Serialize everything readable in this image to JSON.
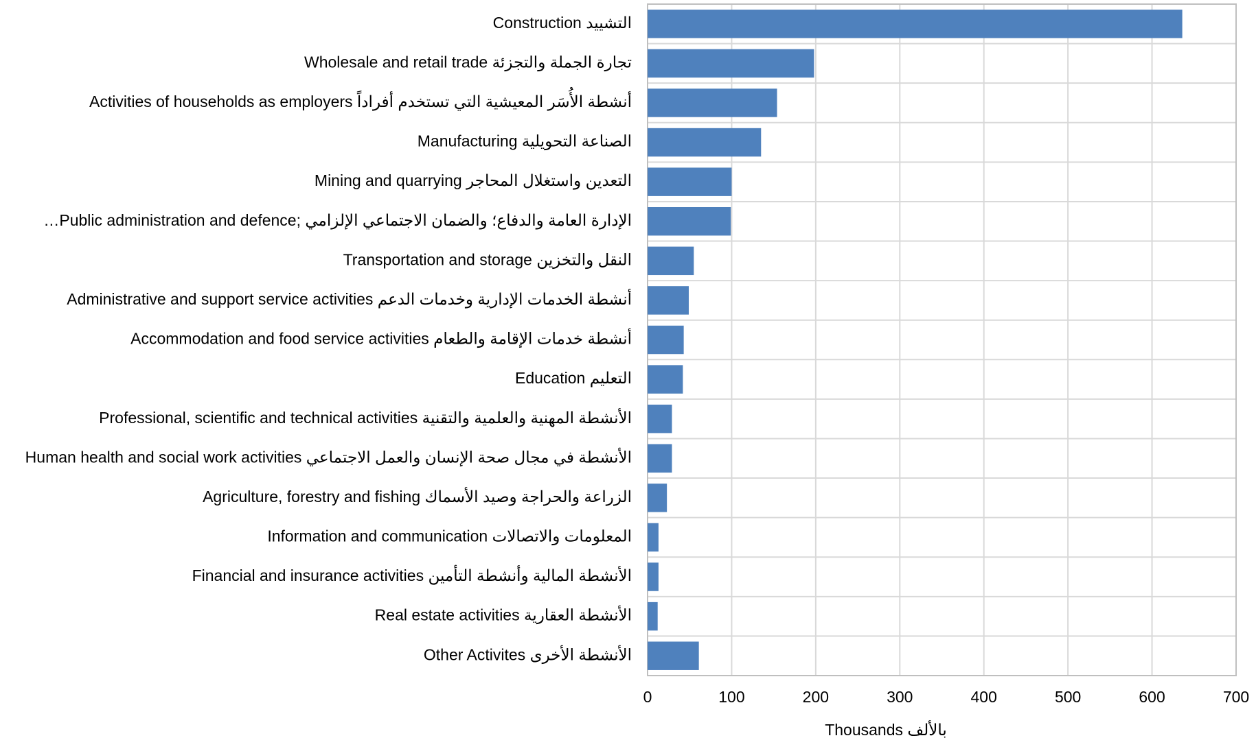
{
  "chart_data": {
    "type": "hbar",
    "categories": [
      "Construction التشييد",
      "Wholesale and retail trade تجارة الجملة والتجزئة",
      "Activities of households as employers  أنشطة الأُسَر المعيشية التي تستخدم أفراداً",
      "Manufacturing الصناعة التحويلية",
      "Mining and quarrying التعدين واستغلال المحاجر",
      "…Public administration and defence;  الإدارة العامة والدفاع؛ والضمان الاجتماعي الإلزامي",
      "Transportation and storage النقل والتخزين",
      "Administrative and support service activities أنشطة الخدمات الإدارية وخدمات الدعم",
      "Accommodation and food service activities أنشطة خدمات الإقامة والطعام",
      "Education التعليم",
      "Professional, scientific and technical activities الأنشطة المهنية والعلمية والتقنية",
      "Human health and social work activities الأنشطة في مجال صحة الإنسان والعمل الاجتماعي",
      "Agriculture, forestry and fishing الزراعة  والحراجة وصيد الأسماك",
      "Information and communication المعلومات والاتصالات",
      "Financial and insurance activities الأنشطة المالية وأنشطة التأمين",
      "Real estate activities الأنشطة العقارية",
      "Other Activites الأنشطة الأخرى"
    ],
    "values": [
      636,
      198,
      154,
      135,
      100,
      99,
      55,
      49,
      43,
      42,
      29,
      29,
      23,
      13,
      13,
      12,
      61
    ],
    "color": "#4f81bd",
    "xlabel": "Thousands بالألف",
    "xlim": [
      0,
      700
    ],
    "xticks": [
      0,
      100,
      200,
      300,
      400,
      500,
      600,
      700
    ],
    "grid": true
  }
}
